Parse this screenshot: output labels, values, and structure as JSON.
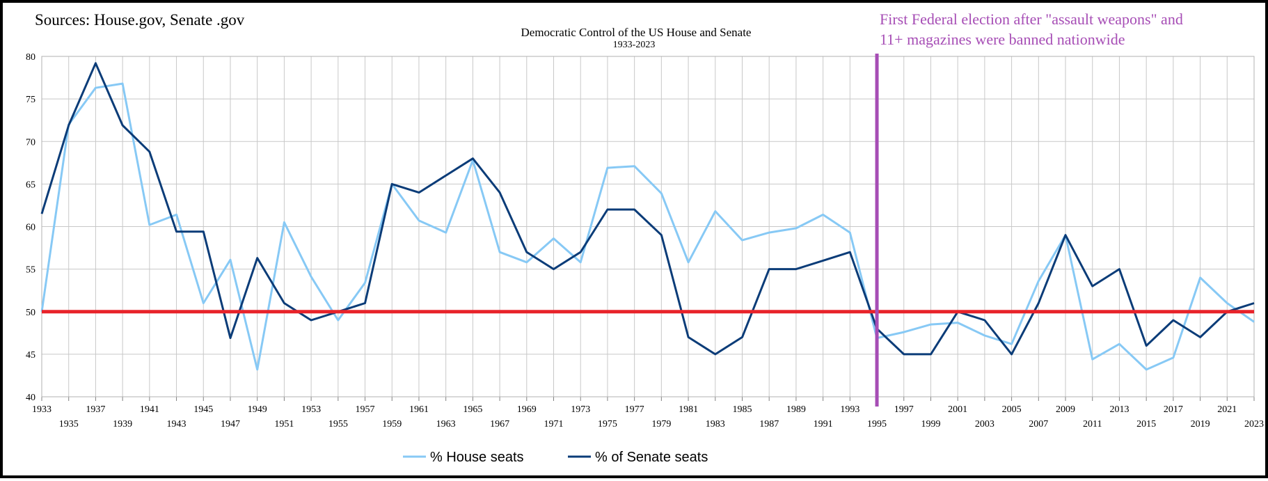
{
  "source_note": "Sources: House.gov, Senate .gov",
  "annotation": {
    "line1": "First Federal election after \"assault weapons\" and",
    "line2": "11+ magazines were banned nationwide",
    "x": 1995,
    "color": "#A64DB5"
  },
  "chart_data": {
    "type": "line",
    "title": "Democratic Control of the US House and Senate",
    "subtitle": "1933-2023",
    "xlabel": "",
    "ylabel": "",
    "ylim": [
      40,
      80
    ],
    "yticks": [
      40,
      45,
      50,
      55,
      60,
      65,
      70,
      75,
      80
    ],
    "xlim": [
      1933,
      2023
    ],
    "grid": true,
    "legend_position": "bottom",
    "x": [
      1933,
      1935,
      1937,
      1939,
      1941,
      1943,
      1945,
      1947,
      1949,
      1951,
      1953,
      1955,
      1957,
      1959,
      1961,
      1963,
      1965,
      1967,
      1969,
      1971,
      1973,
      1975,
      1977,
      1979,
      1981,
      1983,
      1985,
      1987,
      1989,
      1991,
      1993,
      1995,
      1997,
      1999,
      2001,
      2003,
      2005,
      2007,
      2009,
      2011,
      2013,
      2015,
      2017,
      2019,
      2021,
      2023
    ],
    "series": [
      {
        "name": "% House seats",
        "color": "#87C9F5",
        "values": [
          50,
          72,
          76.3,
          76.8,
          60.2,
          61.4,
          51,
          56.1,
          43.2,
          60.5,
          54.1,
          49,
          53.4,
          65,
          60.7,
          59.3,
          67.8,
          57,
          55.8,
          58.6,
          55.8,
          66.9,
          67.1,
          63.9,
          55.8,
          61.8,
          58.4,
          59.3,
          59.8,
          61.4,
          59.3,
          46.9,
          47.6,
          48.5,
          48.7,
          47.2,
          46.2,
          53.6,
          59,
          44.4,
          46.2,
          43.2,
          44.6,
          54,
          51,
          48.8
        ]
      },
      {
        "name": "% of Senate seats",
        "color": "#0B3C78",
        "values": [
          61.5,
          71.9,
          79.2,
          71.9,
          68.8,
          59.4,
          59.4,
          46.9,
          56.3,
          51,
          49,
          50,
          51,
          65,
          64,
          66,
          68,
          64,
          57,
          55,
          57,
          62,
          62,
          59,
          47,
          45,
          47,
          55,
          55,
          56,
          57,
          48,
          45,
          45,
          50,
          49,
          45,
          51,
          59,
          53,
          55,
          46,
          49,
          47,
          50,
          51
        ]
      }
    ],
    "reference_lines": [
      {
        "axis": "y",
        "value": 50,
        "color": "#E8232A"
      }
    ]
  }
}
